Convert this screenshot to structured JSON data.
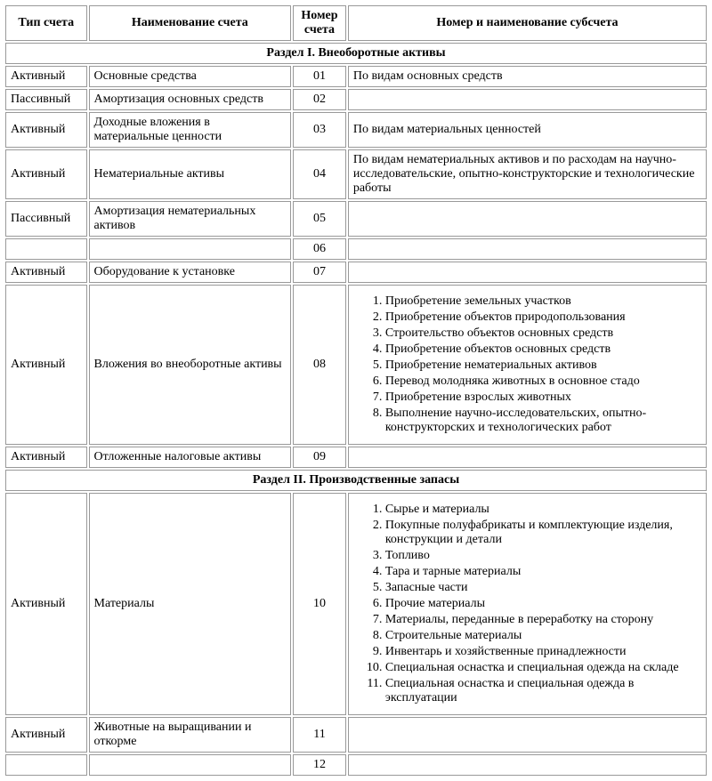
{
  "headers": {
    "type": "Тип счета",
    "name": "Наименование счета",
    "number": "Номер счета",
    "sub": "Номер и наименование субсчета"
  },
  "section1": {
    "title": "Раздел I. Внеоборотные активы",
    "rows": [
      {
        "type": "Активный",
        "name": "Основные средства",
        "num": "01",
        "sub_text": "По видам основных средств"
      },
      {
        "type": "Пассивный",
        "name": "Амортизация основных средств",
        "num": "02",
        "sub_text": ""
      },
      {
        "type": "Активный",
        "name": "Доходные вложения в материальные ценности",
        "num": "03",
        "sub_text": "По видам материальных ценностей"
      },
      {
        "type": "Активный",
        "name": "Нематериальные активы",
        "num": "04",
        "sub_text": "По видам нематериальных активов и по расходам на научно-исследовательские, опытно-конструкторские и технологические работы"
      },
      {
        "type": "Пассивный",
        "name": "Амортизация нематериальных активов",
        "num": "05",
        "sub_text": ""
      },
      {
        "type": "",
        "name": "",
        "num": "06",
        "sub_text": ""
      },
      {
        "type": "Активный",
        "name": "Оборудование к установке",
        "num": "07",
        "sub_text": ""
      }
    ],
    "row08": {
      "type": "Активный",
      "name": "Вложения во внеоборотные активы",
      "num": "08",
      "list": [
        "Приобретение земельных участков",
        "Приобретение объектов природопользования",
        "Строительство объектов основных средств",
        "Приобретение объектов основных средств",
        "Приобретение нематериальных активов",
        "Перевод молодняка животных в основное стадо",
        "Приобретение взрослых животных",
        "Выполнение научно-исследовательских, опытно-конструкторских и технологических работ"
      ]
    },
    "row09": {
      "type": "Активный",
      "name": "Отложенные налоговые активы",
      "num": "09",
      "sub_text": ""
    }
  },
  "section2": {
    "title": "Раздел II. Производственные запасы",
    "row10": {
      "type": "Активный",
      "name": "Материалы",
      "num": "10",
      "list": [
        "Сырье и материалы",
        "Покупные полуфабрикаты и комплектующие изделия, конструкции и детали",
        "Топливо",
        "Тара и тарные материалы",
        "Запасные части",
        "Прочие материалы",
        "Материалы, переданные в переработку на сторону",
        "Строительные материалы",
        "Инвентарь и хозяйственные принадлежности",
        "Специальная оснастка и специальная одежда на складе",
        "Специальная оснастка и специальная одежда в эксплуатации"
      ]
    },
    "row11": {
      "type": "Активный",
      "name": "Животные на выращивании и откорме",
      "num": "11",
      "sub_text": ""
    },
    "row12": {
      "type": "",
      "name": "",
      "num": "12",
      "sub_text": ""
    }
  }
}
